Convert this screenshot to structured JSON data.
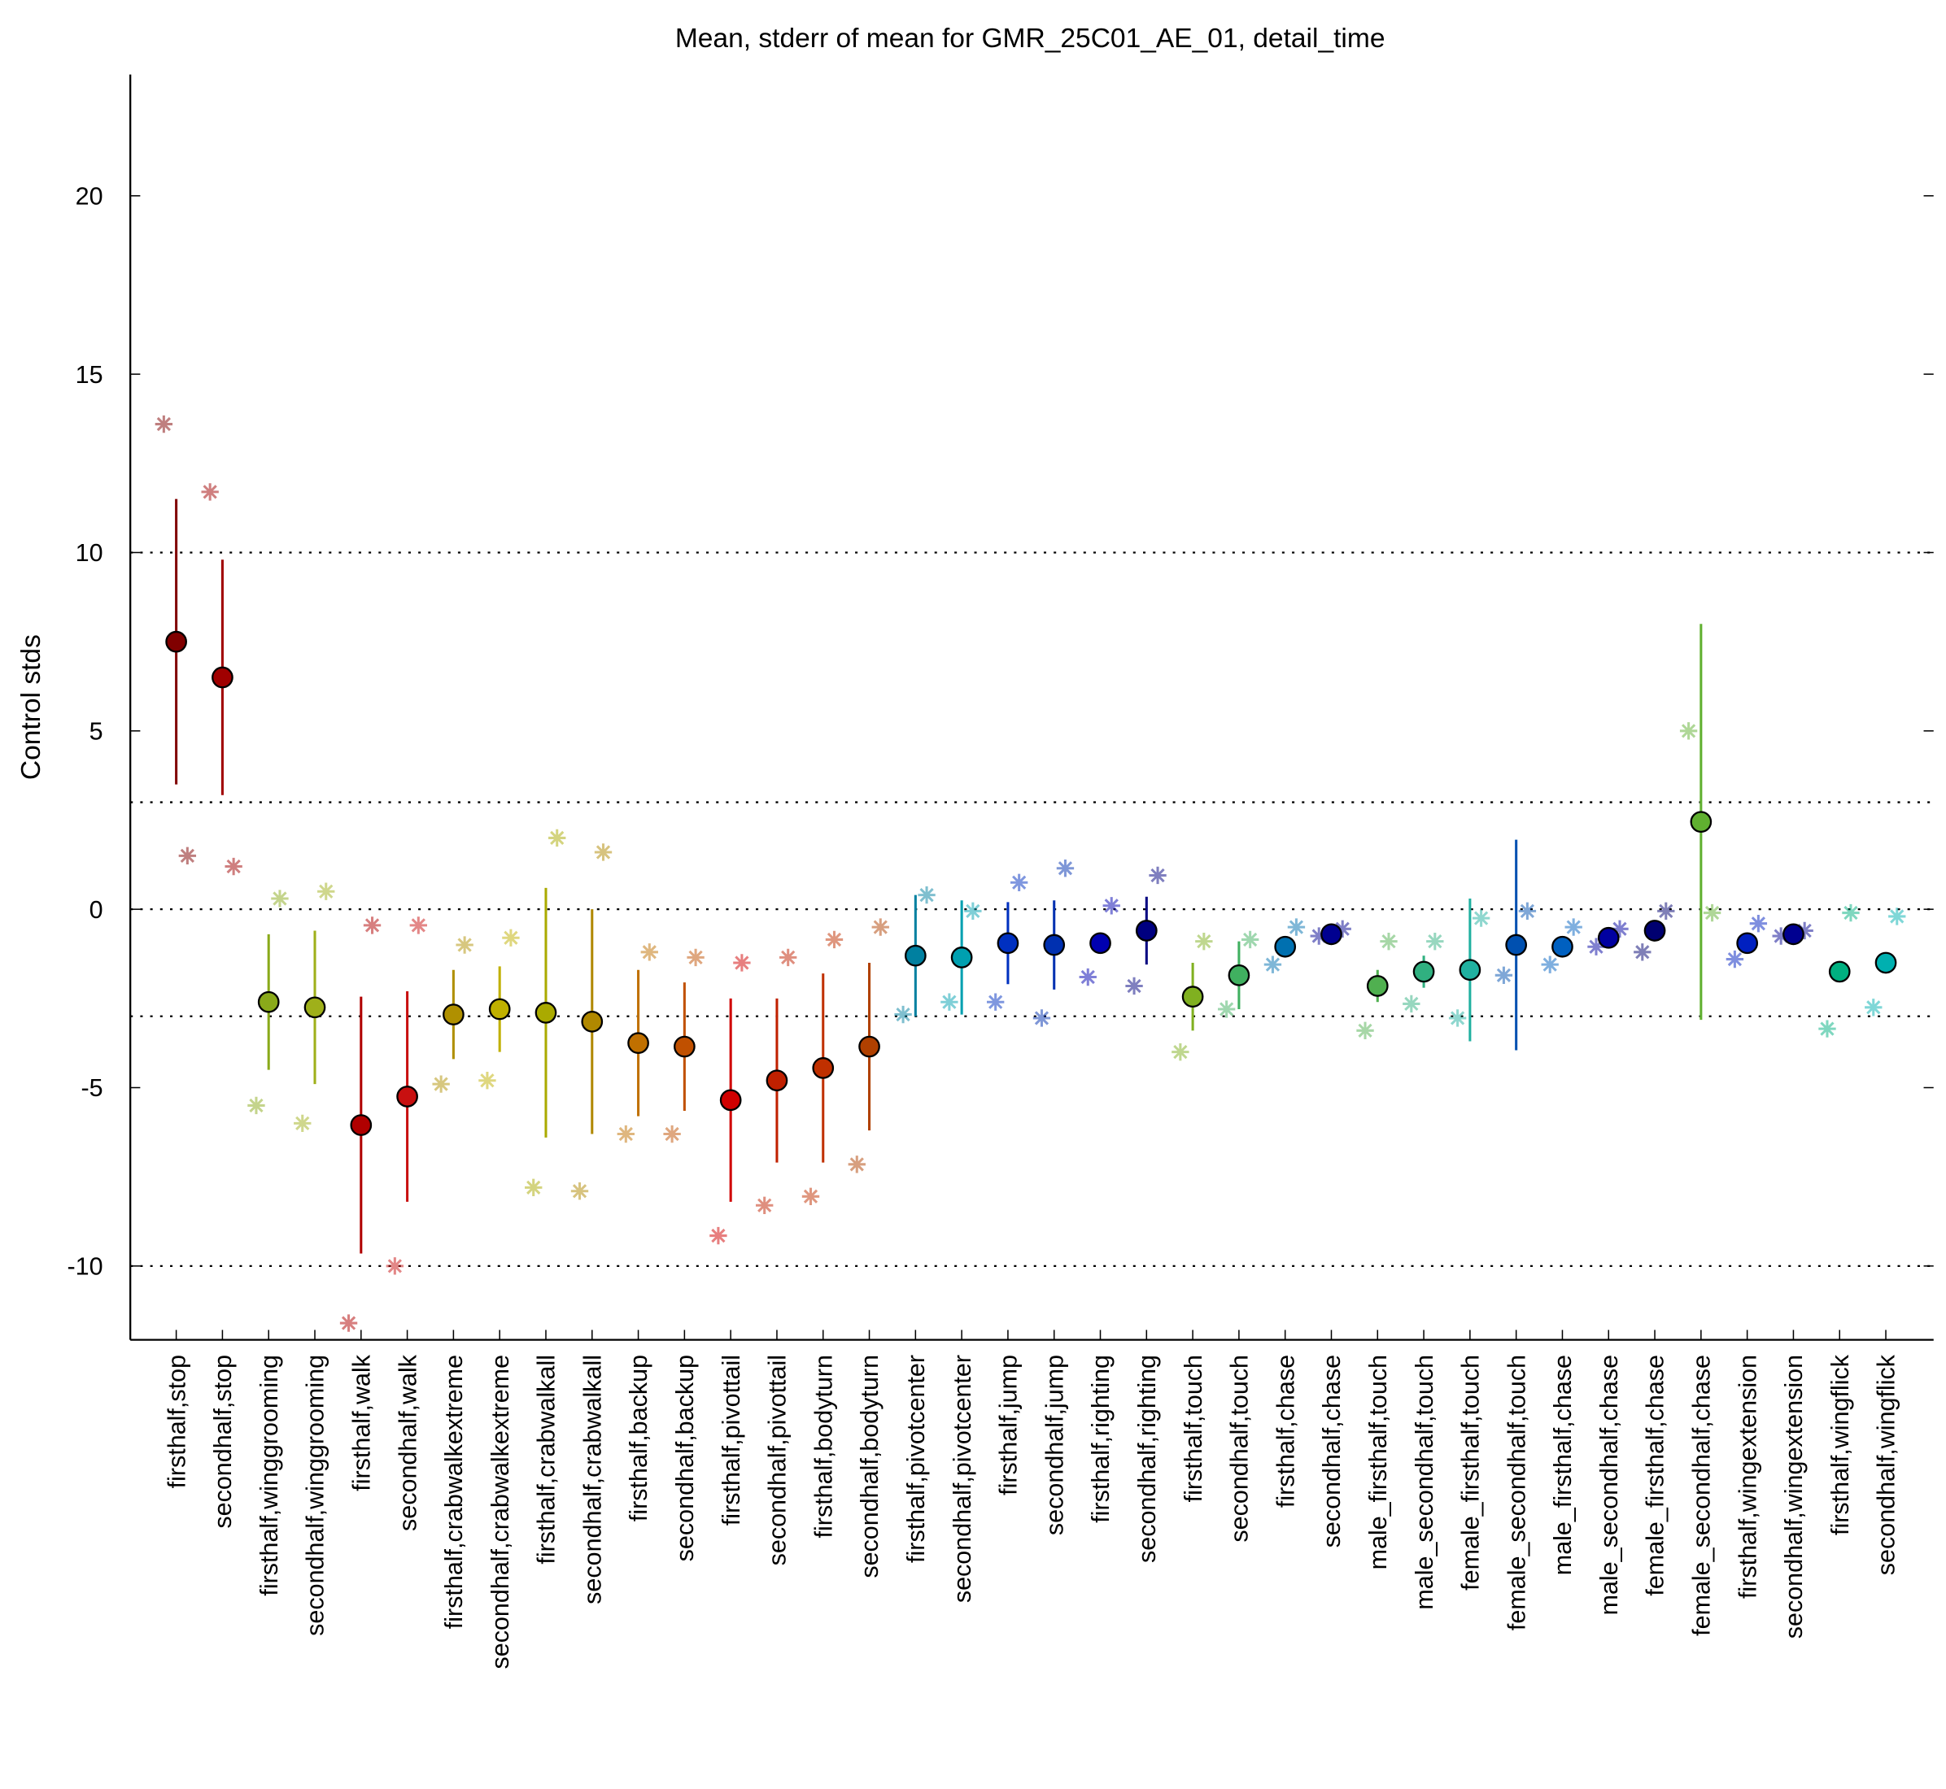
{
  "chart_data": {
    "type": "errorbar",
    "title": "Mean, stderr of mean for GMR_25C01_AE_01, detail_time",
    "ylabel": "Control stds",
    "ylim": [
      -12.07,
      23.4
    ],
    "yticks": [
      -10,
      -5,
      0,
      5,
      10,
      15,
      20
    ],
    "reference_lines": [
      -10,
      -3,
      0,
      3,
      10
    ],
    "categories": [
      "firsthalf,stop",
      "secondhalf,stop",
      "firsthalf,winggrooming",
      "secondhalf,winggrooming",
      "firsthalf,walk",
      "secondhalf,walk",
      "firsthalf,crabwalkextreme",
      "secondhalf,crabwalkextreme",
      "firsthalf,crabwalkall",
      "secondhalf,crabwalkall",
      "firsthalf,backup",
      "secondhalf,backup",
      "firsthalf,pivottail",
      "secondhalf,pivottail",
      "firsthalf,bodyturn",
      "secondhalf,bodyturn",
      "firsthalf,pivotcenter",
      "secondhalf,pivotcenter",
      "firsthalf,jump",
      "secondhalf,jump",
      "firsthalf,righting",
      "secondhalf,righting",
      "firsthalf,touch",
      "secondhalf,touch",
      "firsthalf,chase",
      "secondhalf,chase",
      "male_firsthalf,touch",
      "male_secondhalf,touch",
      "female_firsthalf,touch",
      "female_secondhalf,touch",
      "male_firsthalf,chase",
      "male_secondhalf,chase",
      "female_firsthalf,chase",
      "female_secondhalf,chase",
      "firsthalf,wingextension",
      "secondhalf,wingextension",
      "firsthalf,wingflick",
      "secondhalf,wingflick"
    ],
    "colors": [
      "#800000",
      "#a00000",
      "#8aaa1a",
      "#9fb01a",
      "#b00000",
      "#c81010",
      "#b09000",
      "#c0b000",
      "#aaaa00",
      "#b08800",
      "#c07000",
      "#c05000",
      "#d00000",
      "#c02000",
      "#c03000",
      "#b04000",
      "#0080a0",
      "#00a0b0",
      "#0030c0",
      "#0030b0",
      "#0000b0",
      "#000080",
      "#80b020",
      "#40b060",
      "#0070b0",
      "#000090",
      "#50b050",
      "#30b080",
      "#20b0a0",
      "#0050b0",
      "#0060c0",
      "#0000a0",
      "#000070",
      "#60b030",
      "#0020c0",
      "#000090",
      "#00b080",
      "#00b0b0"
    ],
    "values": [
      7.5,
      6.5,
      -2.6,
      -2.75,
      -6.05,
      -5.25,
      -2.95,
      -2.8,
      -2.9,
      -3.15,
      -3.75,
      -3.85,
      -5.35,
      -4.8,
      -4.45,
      -3.85,
      -1.3,
      -1.35,
      -0.95,
      -1.0,
      -0.95,
      -0.6,
      -2.45,
      -1.85,
      -1.05,
      -0.7,
      -2.15,
      -1.75,
      -1.7,
      -1.0,
      -1.05,
      -0.8,
      -0.6,
      2.45,
      -0.95,
      -0.7,
      -1.75,
      -1.5
    ],
    "errors": [
      4.0,
      3.3,
      1.9,
      2.15,
      3.6,
      2.95,
      1.25,
      1.2,
      3.5,
      3.15,
      2.05,
      1.8,
      2.85,
      2.3,
      2.65,
      2.35,
      1.7,
      1.6,
      1.15,
      1.25,
      0.25,
      0.95,
      0.95,
      0.95,
      0.15,
      0.1,
      0.45,
      0.45,
      2.0,
      2.95,
      0.2,
      0.15,
      0.15,
      5.55,
      0.15,
      0.1,
      0.1,
      0.1
    ],
    "star_left": [
      13.6,
      11.7,
      -5.5,
      -6.0,
      -11.6,
      -10.0,
      -4.9,
      -4.8,
      -7.8,
      -7.9,
      -6.3,
      -6.3,
      -9.15,
      -8.3,
      -8.05,
      -7.15,
      -2.95,
      -2.6,
      -2.6,
      -3.05,
      -1.9,
      -2.15,
      -4.0,
      -2.8,
      -1.55,
      -0.75,
      -3.4,
      -2.65,
      -3.05,
      -1.85,
      -1.55,
      -1.05,
      -1.2,
      5.0,
      -1.4,
      -0.75,
      -3.35,
      -2.75
    ],
    "star_right": [
      1.5,
      1.2,
      0.3,
      0.5,
      -0.45,
      -0.45,
      -1.0,
      -0.8,
      2.0,
      1.6,
      -1.2,
      -1.35,
      -1.5,
      -1.35,
      -0.85,
      -0.5,
      0.4,
      -0.05,
      0.75,
      1.15,
      0.1,
      0.95,
      -0.9,
      -0.85,
      -0.5,
      -0.55,
      -0.9,
      -0.9,
      -0.25,
      -0.05,
      -0.5,
      -0.55,
      -0.05,
      -0.1,
      -0.4,
      -0.6,
      -0.1,
      -0.2
    ]
  }
}
